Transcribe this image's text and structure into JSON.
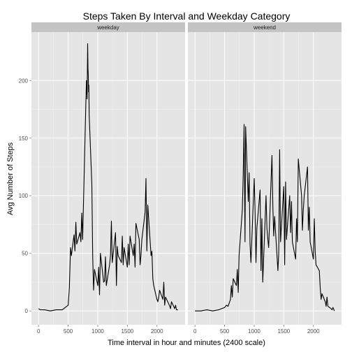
{
  "chart_data": {
    "type": "line",
    "title": "Steps Taken By Interval and Weekday Category",
    "xlabel": "Time interval in hour and minutes (2400 scale)",
    "ylabel": "Avg Number of Steps",
    "xlim": [
      -120,
      2475
    ],
    "ylim": [
      -12,
      242
    ],
    "x_ticks": [
      0,
      500,
      1000,
      1500,
      2000
    ],
    "y_ticks": [
      0,
      50,
      100,
      150,
      200
    ],
    "grid": true,
    "line_color": "#000000",
    "panels": [
      {
        "name": "weekday",
        "x": [
          0,
          30,
          100,
          200,
          300,
          400,
          450,
          500,
          520,
          540,
          555,
          600,
          615,
          630,
          645,
          700,
          715,
          730,
          745,
          800,
          810,
          820,
          830,
          835,
          840,
          845,
          850,
          855,
          900,
          915,
          930,
          945,
          1000,
          1015,
          1030,
          1045,
          1100,
          1115,
          1130,
          1145,
          1200,
          1215,
          1230,
          1245,
          1300,
          1315,
          1330,
          1345,
          1400,
          1415,
          1430,
          1445,
          1500,
          1515,
          1530,
          1545,
          1600,
          1615,
          1630,
          1645,
          1700,
          1715,
          1730,
          1745,
          1800,
          1815,
          1830,
          1845,
          1900,
          1915,
          1930,
          1945,
          2000,
          2015,
          2030,
          2045,
          2100,
          2115,
          2130,
          2145,
          2200,
          2215,
          2230,
          2245,
          2300,
          2315,
          2330,
          2355
        ],
        "y": [
          2,
          1,
          1,
          0,
          1,
          1,
          3,
          5,
          20,
          55,
          48,
          66,
          52,
          77,
          58,
          68,
          60,
          85,
          62,
          182,
          200,
          184,
          232,
          210,
          205,
          190,
          196,
          170,
          110,
          48,
          18,
          36,
          22,
          38,
          14,
          50,
          25,
          26,
          47,
          22,
          40,
          48,
          78,
          42,
          68,
          22,
          56,
          48,
          42,
          65,
          40,
          55,
          38,
          58,
          40,
          65,
          48,
          58,
          38,
          76,
          62,
          40,
          48,
          62,
          86,
          115,
          52,
          92,
          48,
          52,
          28,
          22,
          10,
          8,
          12,
          18,
          10,
          25,
          5,
          12,
          6,
          4,
          2,
          8,
          2,
          5,
          1,
          1
        ]
      },
      {
        "name": "weekend",
        "x": [
          0,
          30,
          100,
          200,
          300,
          400,
          450,
          500,
          530,
          560,
          600,
          615,
          630,
          645,
          700,
          715,
          730,
          745,
          800,
          815,
          830,
          845,
          855,
          900,
          915,
          930,
          945,
          1000,
          1015,
          1030,
          1045,
          1100,
          1115,
          1130,
          1145,
          1200,
          1215,
          1230,
          1245,
          1300,
          1315,
          1330,
          1345,
          1400,
          1415,
          1430,
          1445,
          1500,
          1515,
          1530,
          1545,
          1600,
          1615,
          1630,
          1645,
          1700,
          1715,
          1730,
          1745,
          1800,
          1815,
          1830,
          1845,
          1900,
          1915,
          1930,
          1945,
          2000,
          2015,
          2030,
          2045,
          2100,
          2115,
          2130,
          2145,
          2200,
          2215,
          2230,
          2245,
          2300,
          2315,
          2330,
          2355
        ],
        "y": [
          0,
          0,
          0,
          1,
          0,
          1,
          2,
          3,
          5,
          4,
          10,
          22,
          12,
          28,
          22,
          36,
          16,
          48,
          88,
          120,
          162,
          60,
          160,
          95,
          120,
          58,
          42,
          115,
          86,
          42,
          72,
          105,
          35,
          80,
          25,
          100,
          72,
          62,
          55,
          135,
          90,
          65,
          82,
          35,
          50,
          140,
          60,
          108,
          40,
          112,
          62,
          100,
          68,
          95,
          60,
          45,
          80,
          60,
          132,
          100,
          70,
          88,
          100,
          125,
          70,
          90,
          60,
          45,
          80,
          52,
          40,
          35,
          20,
          10,
          15,
          8,
          4,
          12,
          4,
          2,
          1,
          3,
          0
        ]
      }
    ]
  }
}
